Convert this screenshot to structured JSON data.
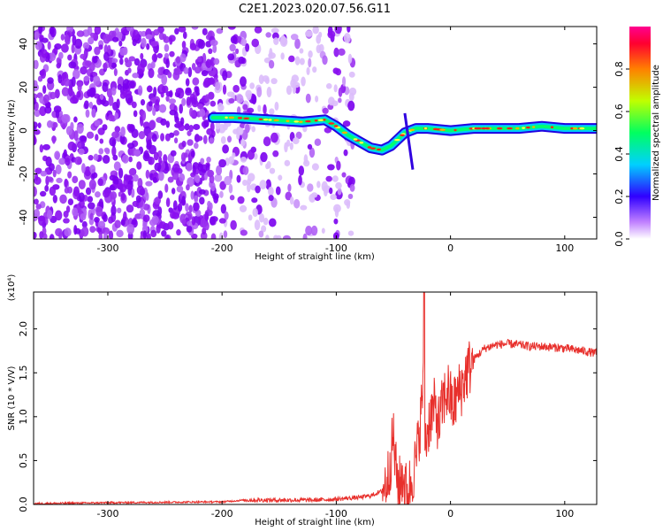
{
  "title": "C2E1.2023.020.07.56.G11",
  "chart_data": [
    {
      "type": "heatmap",
      "title": "C2E1.2023.020.07.56.G11",
      "xlabel": "Height of straight line (km)",
      "ylabel": "Frequency (Hz)",
      "xlim": [
        -365,
        128
      ],
      "ylim": [
        -50,
        48
      ],
      "x_ticks": [
        -300,
        -200,
        -100,
        0,
        100
      ],
      "y_ticks": [
        -40,
        -20,
        0,
        20,
        40
      ],
      "colorbar": {
        "label": "Normalized spectral amplitude",
        "range": [
          0,
          1
        ],
        "ticks": [
          "0.0",
          "0.2",
          "0.4",
          "0.6",
          "0.8"
        ],
        "colors": [
          "#ffffff",
          "#b060ff",
          "#2000ff",
          "#00e0ff",
          "#00ff60",
          "#c0ff00",
          "#ff8000",
          "#ff0040",
          "#ff0090"
        ]
      },
      "ridge": {
        "x": [
          -208,
          -190,
          -160,
          -130,
          -110,
          -100,
          -90,
          -80,
          -70,
          -60,
          -52,
          -46,
          -40,
          -30,
          -20,
          0,
          20,
          40,
          60,
          80,
          100,
          128
        ],
        "y": [
          6,
          6,
          5,
          4,
          5,
          2,
          -2,
          -5,
          -8,
          -9,
          -7,
          -4,
          -1,
          1,
          1,
          0,
          1,
          1,
          1,
          2,
          1,
          1
        ]
      }
    },
    {
      "type": "line",
      "xlabel": "Height of straight line (km)",
      "ylabel": "SNR (10 * V/V)",
      "y_multiplier": "(x10⁴)",
      "xlim": [
        -365,
        128
      ],
      "ylim": [
        0,
        2.42
      ],
      "x_ticks": [
        -300,
        -200,
        -100,
        0,
        100
      ],
      "y_ticks": [
        "0.0",
        "0.5",
        "1.0",
        "1.5",
        "2.0"
      ],
      "series": [
        {
          "color": "#e8302c",
          "x": [
            -365,
            -300,
            -200,
            -180,
            -150,
            -120,
            -100,
            -80,
            -70,
            -60,
            -55,
            -52,
            -50,
            -48,
            -45,
            -42,
            -38,
            -34,
            -30,
            -26,
            -24,
            -22,
            -18,
            -14,
            -10,
            -6,
            -2,
            2,
            6,
            10,
            14,
            20,
            30,
            40,
            50,
            60,
            70,
            80,
            90,
            100,
            110,
            120,
            128
          ],
          "y": [
            0.01,
            0.02,
            0.03,
            0.05,
            0.05,
            0.05,
            0.06,
            0.08,
            0.1,
            0.15,
            0.3,
            0.55,
            0.8,
            0.4,
            0.2,
            0.35,
            0.1,
            0.3,
            0.5,
            1.0,
            1.4,
            0.7,
            1.0,
            1.1,
            0.9,
            1.2,
            1.3,
            1.1,
            1.25,
            1.35,
            1.5,
            1.65,
            1.78,
            1.82,
            1.83,
            1.82,
            1.8,
            1.8,
            1.79,
            1.78,
            1.76,
            1.74,
            1.72
          ]
        }
      ]
    }
  ]
}
